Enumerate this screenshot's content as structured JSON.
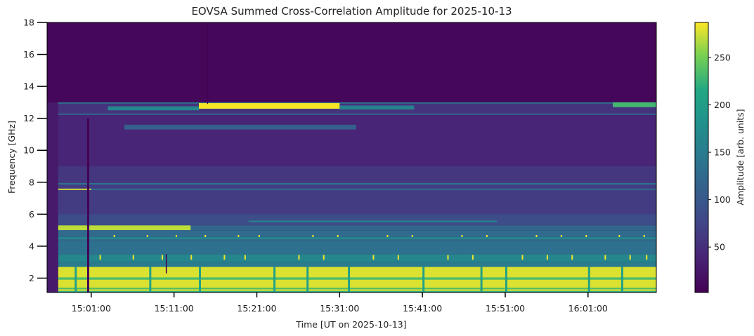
{
  "chart_data": {
    "type": "heatmap",
    "title": "EOVSA Summed Cross-Correlation Amplitude for 2025-10-13",
    "xlabel": "Time [UT on 2025-10-13]",
    "ylabel": "Frequency [GHz]",
    "xlim": [
      "14:55:40",
      "16:09:15"
    ],
    "ylim": [
      1.1,
      18
    ],
    "xticks": [
      "15:01:00",
      "15:11:00",
      "15:21:00",
      "15:31:00",
      "15:41:00",
      "15:51:00",
      "16:01:00"
    ],
    "yticks": [
      2,
      4,
      6,
      8,
      10,
      12,
      14,
      16,
      18
    ],
    "colorbar": {
      "label": "Amplitude [arb. units]",
      "range": [
        2,
        287
      ],
      "ticks": [
        50,
        100,
        150,
        200,
        250
      ],
      "colormap": "viridis"
    },
    "regions": [
      {
        "name": "background",
        "t0": "14:55:40",
        "t1": "16:09:15",
        "f0": 1.1,
        "f1": 18,
        "v": 8
      },
      {
        "name": "mid-band",
        "t0": "14:57:00",
        "t1": "16:09:15",
        "f0": 6,
        "f1": 13,
        "v": 40
      },
      {
        "name": "band-8-9",
        "t0": "14:57:00",
        "t1": "16:09:15",
        "f0": 8,
        "f1": 9,
        "v": 58
      },
      {
        "name": "band-6-8",
        "t0": "14:57:00",
        "t1": "16:09:15",
        "f0": 6,
        "f1": 8,
        "v": 65
      },
      {
        "name": "band-12-13",
        "t0": "14:57:00",
        "t1": "16:09:15",
        "f0": 12.2,
        "f1": 13,
        "v": 55
      },
      {
        "name": "line-12.3",
        "t0": "14:57:00",
        "t1": "16:09:15",
        "f0": 12.22,
        "f1": 12.3,
        "v": 125
      },
      {
        "name": "line-12.95",
        "t0": "14:57:00",
        "t1": "16:09:15",
        "f0": 12.92,
        "f1": 13,
        "v": 140
      },
      {
        "name": "emission-early",
        "t0": "15:03:00",
        "t1": "15:14:00",
        "f0": 12.5,
        "f1": 12.75,
        "v": 170
      },
      {
        "name": "emission-peak",
        "t0": "15:14:00",
        "t1": "15:31:00",
        "f0": 12.6,
        "f1": 12.95,
        "v": 285
      },
      {
        "name": "emission-late",
        "t0": "15:31:00",
        "t1": "15:40:00",
        "f0": 12.55,
        "f1": 12.8,
        "v": 160
      },
      {
        "name": "emission-end",
        "t0": "16:04:00",
        "t1": "16:09:15",
        "f0": 12.7,
        "f1": 13,
        "v": 230
      },
      {
        "name": "band-11.4",
        "t0": "15:05:00",
        "t1": "15:33:00",
        "f0": 11.3,
        "f1": 11.6,
        "v": 110
      },
      {
        "name": "line-7.9",
        "t0": "14:57:00",
        "t1": "16:09:15",
        "f0": 7.86,
        "f1": 7.94,
        "v": 150
      },
      {
        "name": "line-7.55",
        "t0": "14:57:00",
        "t1": "16:09:15",
        "f0": 7.52,
        "f1": 7.6,
        "v": 140
      },
      {
        "name": "line-7.55-early",
        "t0": "14:55:40",
        "t1": "15:01:00",
        "f0": 7.52,
        "f1": 7.6,
        "v": 280
      },
      {
        "name": "band-5.3-6",
        "t0": "14:57:00",
        "t1": "16:09:15",
        "f0": 5.3,
        "f1": 6,
        "v": 85
      },
      {
        "name": "line-5.55",
        "t0": "15:20:00",
        "t1": "15:50:00",
        "f0": 5.5,
        "f1": 5.6,
        "v": 160
      },
      {
        "name": "band-5.0-5.3",
        "t0": "14:57:00",
        "t1": "16:09:15",
        "f0": 5.0,
        "f1": 5.3,
        "v": 120
      },
      {
        "name": "burst-5.1",
        "t0": "14:57:00",
        "t1": "15:13:00",
        "f0": 5.0,
        "f1": 5.3,
        "v": 270
      },
      {
        "name": "band-4.3-5",
        "t0": "14:57:00",
        "t1": "16:09:15",
        "f0": 4.3,
        "f1": 5.0,
        "v": 125
      },
      {
        "name": "line-4.5",
        "t0": "14:57:00",
        "t1": "16:09:15",
        "f0": 4.45,
        "f1": 4.55,
        "v": 175
      },
      {
        "name": "band-3.5-4.3",
        "t0": "14:57:00",
        "t1": "16:09:15",
        "f0": 3.5,
        "f1": 4.3,
        "v": 135
      },
      {
        "name": "band-3.0-3.5",
        "t0": "14:57:00",
        "t1": "16:09:15",
        "f0": 3.0,
        "f1": 3.5,
        "v": 165
      },
      {
        "name": "band-2.7-3.0",
        "t0": "14:57:00",
        "t1": "16:09:15",
        "f0": 2.7,
        "f1": 3.0,
        "v": 150
      },
      {
        "name": "low-band",
        "t0": "14:57:00",
        "t1": "16:09:15",
        "f0": 1.1,
        "f1": 2.7,
        "v": 278
      },
      {
        "name": "low-line-2.0",
        "t0": "14:57:00",
        "t1": "16:09:15",
        "f0": 1.9,
        "f1": 2.05,
        "v": 235
      },
      {
        "name": "low-line-1.35",
        "t0": "14:57:00",
        "t1": "16:09:15",
        "f0": 1.3,
        "f1": 1.4,
        "v": 235
      },
      {
        "name": "low-line-1.15",
        "t0": "14:57:00",
        "t1": "16:09:15",
        "f0": 1.1,
        "f1": 1.2,
        "v": 220
      },
      {
        "name": "left-strip",
        "t0": "14:55:40",
        "t1": "14:57:00",
        "f0": 1.1,
        "f1": 13,
        "v": 28
      },
      {
        "name": "dropout-15:00",
        "t0": "15:00:30",
        "t1": "15:00:45",
        "f0": 1.1,
        "f1": 12,
        "v": 3
      },
      {
        "name": "dropout-15:10",
        "t0": "15:10:00",
        "t1": "15:10:08",
        "f0": 2.3,
        "f1": 3.5,
        "v": 5
      },
      {
        "name": "dropout-15:15",
        "t0": "15:15:00",
        "t1": "15:15:06",
        "f0": 12.9,
        "f1": 18,
        "v": 3
      }
    ],
    "stripes": [
      "14:59:00",
      "15:08:00",
      "15:14:00",
      "15:23:00",
      "15:27:00",
      "15:32:00",
      "15:41:00",
      "15:48:00",
      "15:51:00",
      "16:01:00",
      "16:05:00"
    ],
    "stripe_value": 205,
    "speckles": [
      "15:02:00",
      "15:06:00",
      "15:09:30",
      "15:13:00",
      "15:17:00",
      "15:19:30",
      "15:26:00",
      "15:29:00",
      "15:35:00",
      "15:38:00",
      "15:44:00",
      "15:47:00",
      "15:53:00",
      "15:56:00",
      "15:59:00",
      "16:03:00",
      "16:06:00",
      "16:08:00"
    ],
    "speckle_value": 285
  }
}
